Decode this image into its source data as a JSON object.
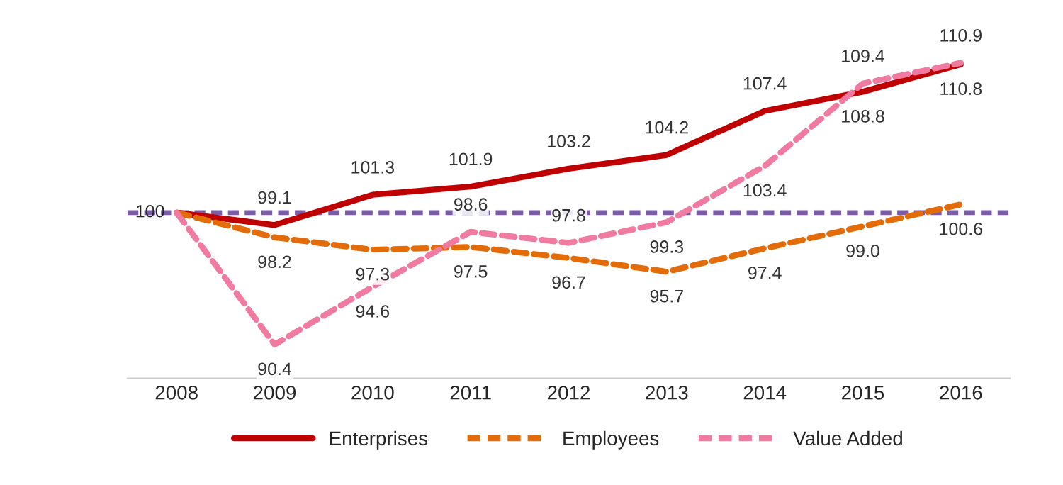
{
  "chart_data": {
    "type": "line",
    "categories": [
      "2008",
      "2009",
      "2010",
      "2011",
      "2012",
      "2013",
      "2014",
      "2015",
      "2016"
    ],
    "series": [
      {
        "name": "Enterprises",
        "color": "#c00000",
        "line_style": "solid",
        "values": [
          100,
          99.1,
          101.3,
          101.9,
          103.2,
          104.2,
          107.4,
          108.8,
          110.8
        ],
        "value_labels": [
          "100",
          "99.1",
          "101.3",
          "101.9",
          "103.2",
          "104.2",
          "107.4",
          "108.8",
          "110.8"
        ]
      },
      {
        "name": "Employees",
        "color": "#e36c09",
        "line_style": "dashed",
        "values": [
          100,
          98.2,
          97.3,
          97.5,
          96.7,
          95.7,
          97.4,
          99.0,
          100.6
        ],
        "value_labels": [
          null,
          "98.2",
          "97.3",
          "97.5",
          "96.7",
          "95.7",
          "97.4",
          "99.0",
          "100.6"
        ]
      },
      {
        "name": "Value Added",
        "color": "#f07aa0",
        "line_style": "dashed",
        "values": [
          100,
          90.4,
          94.6,
          98.6,
          97.8,
          99.3,
          103.4,
          109.4,
          110.9
        ],
        "value_labels": [
          null,
          "90.4",
          "94.6",
          "98.6",
          "97.8",
          "99.3",
          "103.4",
          "109.4",
          "110.9"
        ]
      }
    ],
    "ref_lines": [
      {
        "axis": "y",
        "value": 100,
        "color": "#7b5ca8",
        "line_style": "dashed"
      }
    ],
    "tick_labels": "x",
    "grid": false,
    "legend": "bottom",
    "marker": "none"
  }
}
